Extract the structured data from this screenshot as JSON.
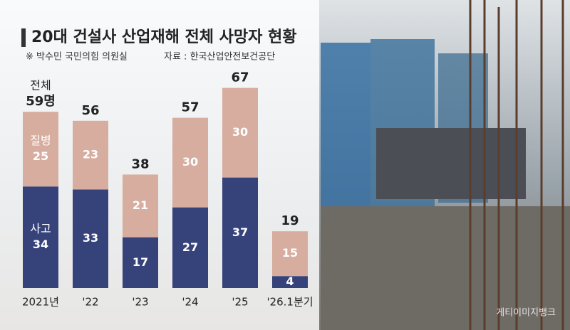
{
  "chart_data": {
    "type": "stacked-bar",
    "title": "20대 건설사 산업재해 전체 사망자 현황",
    "note": "※ 박수민 국민의힘 의원실",
    "source": "자료 : 한국산업안전보건공단",
    "watermark": "게티이미지뱅크",
    "categories": [
      "2021년",
      "'22",
      "'23",
      "'24",
      "'25",
      "'26.1분기"
    ],
    "series": [
      {
        "name": "사고",
        "color": "#36427a",
        "values": [
          34,
          33,
          17,
          27,
          37,
          4
        ]
      },
      {
        "name": "질병",
        "color": "#d7ad9f",
        "values": [
          25,
          23,
          21,
          30,
          30,
          15
        ]
      }
    ],
    "total_title": "전체",
    "totals": [
      59,
      56,
      38,
      57,
      67,
      19
    ],
    "total_labels": [
      "59명",
      "56",
      "38",
      "57",
      "67",
      "19"
    ]
  }
}
